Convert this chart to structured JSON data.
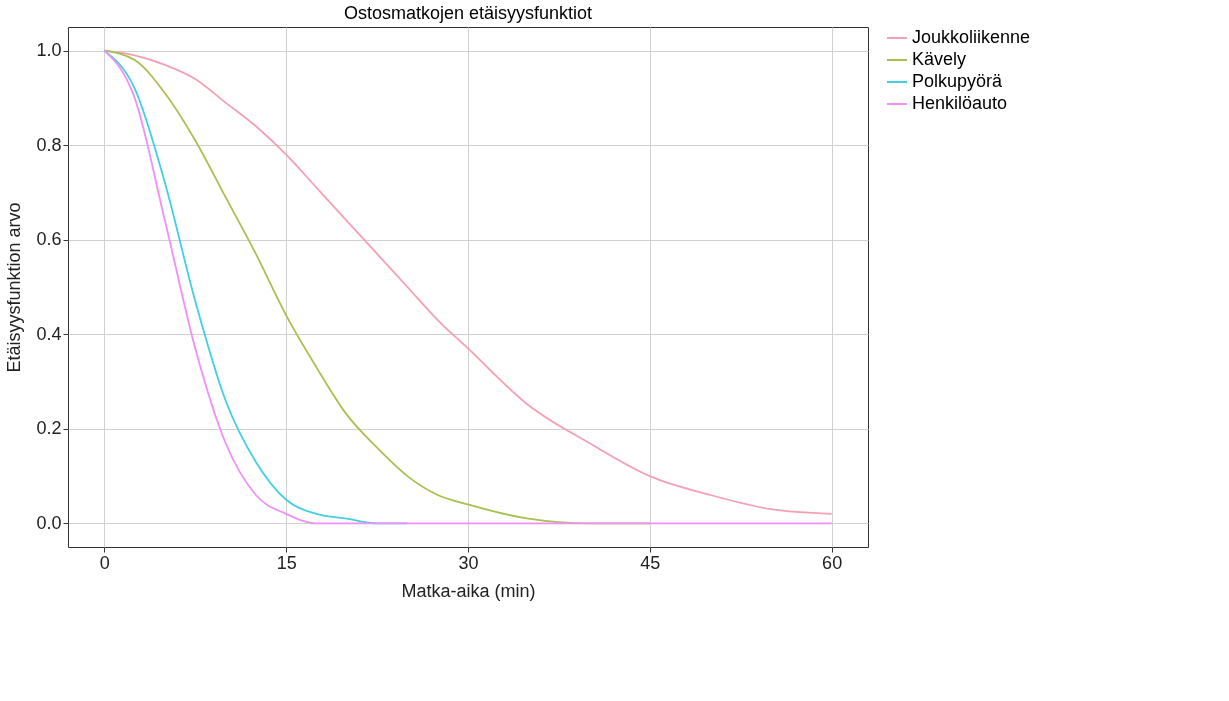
{
  "chart_data": {
    "type": "line",
    "title": "Ostosmatkojen etäisyysfunktiot",
    "xlabel": "Matka-aika (min)",
    "ylabel": "Etäisyysfunktion arvo",
    "x": [
      0,
      2.5,
      5,
      7.5,
      10,
      12.5,
      15,
      17.5,
      20,
      22.5,
      25,
      27.5,
      30,
      35,
      40,
      45,
      50,
      55,
      60
    ],
    "series": [
      {
        "name": "Joukkoliikenne",
        "color": "#f4a0b4",
        "values": [
          1,
          0.99,
          0.97,
          0.94,
          0.89,
          0.84,
          0.78,
          0.71,
          0.64,
          0.57,
          0.5,
          0.43,
          0.37,
          0.25,
          0.17,
          0.1,
          0.06,
          0.03,
          0.02
        ]
      },
      {
        "name": "Kävely",
        "color": "#a8c050",
        "values": [
          1,
          0.98,
          0.91,
          0.81,
          0.69,
          0.57,
          0.44,
          0.33,
          0.23,
          0.16,
          0.1,
          0.06,
          0.04,
          0.01,
          0,
          0,
          null,
          null,
          null
        ]
      },
      {
        "name": "Polkupyörä",
        "color": "#40d0e0",
        "values": [
          1,
          0.92,
          0.72,
          0.47,
          0.26,
          0.13,
          0.05,
          0.02,
          0.01,
          0,
          0,
          null,
          null,
          null,
          null,
          null,
          null,
          null,
          null
        ]
      },
      {
        "name": "Henkilöauto",
        "color": "#f090f8",
        "values": [
          1,
          0.9,
          0.64,
          0.37,
          0.17,
          0.06,
          0.02,
          0,
          0,
          0,
          0,
          0,
          0,
          0,
          0,
          0,
          0,
          0,
          0
        ]
      }
    ],
    "xlim": [
      -3,
      63
    ],
    "xticks": [
      0,
      15,
      30,
      45,
      60
    ],
    "ylim": [
      -0.05,
      1.05
    ],
    "yticks": [
      {
        "value": 0,
        "label": "0.0"
      },
      {
        "value": 0.2,
        "label": "0.2"
      },
      {
        "value": 0.4,
        "label": "0.4"
      },
      {
        "value": 0.6,
        "label": "0.6"
      },
      {
        "value": 0.8,
        "label": "0.8"
      },
      {
        "value": 1,
        "label": "1.0"
      }
    ],
    "grid": true,
    "legend": "right",
    "line_style": "solid",
    "marker": "none"
  }
}
